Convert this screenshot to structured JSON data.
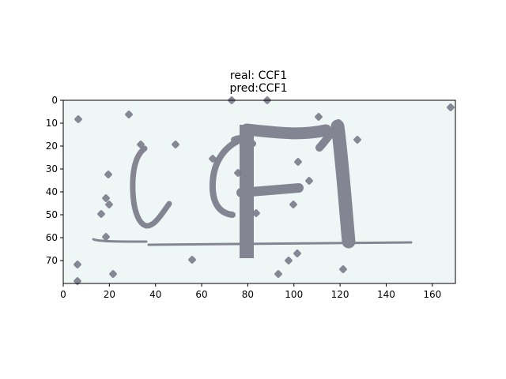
{
  "figure": {
    "title_real": "real: CCF1",
    "title_pred": "pred:CCF1"
  },
  "image_panel": {
    "content": "captcha image",
    "colors": {
      "background": "#eef7f6",
      "ink": "#7f7f8d",
      "ink_dark": "#6e6e7e",
      "noise": "#7a7a8a"
    }
  },
  "axes": {
    "x": {
      "range": [
        0,
        170
      ],
      "ticks": [
        0,
        20,
        40,
        60,
        80,
        100,
        120,
        140,
        160
      ],
      "tick_labels": [
        "0",
        "20",
        "40",
        "60",
        "80",
        "100",
        "120",
        "140",
        "160"
      ]
    },
    "y": {
      "range": [
        80,
        0
      ],
      "ticks": [
        0,
        10,
        20,
        30,
        40,
        50,
        60,
        70
      ],
      "tick_labels": [
        "0",
        "10",
        "20",
        "30",
        "40",
        "50",
        "60",
        "70"
      ]
    }
  }
}
